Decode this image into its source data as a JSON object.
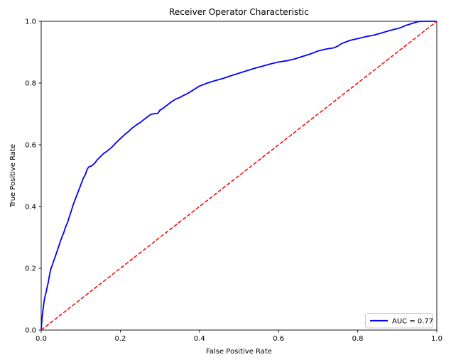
{
  "chart_data": {
    "type": "line",
    "title": "Receiver Operator Characteristic",
    "xlabel": "False Positive Rate",
    "ylabel": "True Positive Rate",
    "xlim": [
      0.0,
      1.0
    ],
    "ylim": [
      0.0,
      1.0
    ],
    "x_ticks": [
      "0.0",
      "0.2",
      "0.4",
      "0.6",
      "0.8",
      "1.0"
    ],
    "y_ticks": [
      "0.0",
      "0.2",
      "0.4",
      "0.6",
      "0.8",
      "1.0"
    ],
    "grid": false,
    "legend": {
      "position": "lower right",
      "label": "AUC = 0.77"
    },
    "auc": 0.77,
    "colors": {
      "roc_curve": "#0000ff",
      "chance_line": "#ff0000",
      "frame": "#000000",
      "legend_border": "#cccccc",
      "background": "#ffffff"
    },
    "series": [
      {
        "name": "AUC = 0.77",
        "color": "#0000ff",
        "style": "solid",
        "width": 1.8,
        "points": [
          [
            0.0,
            0.0
          ],
          [
            0.001,
            0.02
          ],
          [
            0.003,
            0.05
          ],
          [
            0.005,
            0.07
          ],
          [
            0.007,
            0.09
          ],
          [
            0.009,
            0.105
          ],
          [
            0.011,
            0.115
          ],
          [
            0.013,
            0.125
          ],
          [
            0.015,
            0.14
          ],
          [
            0.018,
            0.155
          ],
          [
            0.02,
            0.17
          ],
          [
            0.022,
            0.185
          ],
          [
            0.025,
            0.2
          ],
          [
            0.028,
            0.21
          ],
          [
            0.032,
            0.225
          ],
          [
            0.036,
            0.24
          ],
          [
            0.04,
            0.255
          ],
          [
            0.044,
            0.27
          ],
          [
            0.048,
            0.285
          ],
          [
            0.052,
            0.3
          ],
          [
            0.057,
            0.315
          ],
          [
            0.062,
            0.335
          ],
          [
            0.067,
            0.35
          ],
          [
            0.072,
            0.37
          ],
          [
            0.077,
            0.39
          ],
          [
            0.082,
            0.41
          ],
          [
            0.088,
            0.43
          ],
          [
            0.094,
            0.45
          ],
          [
            0.1,
            0.47
          ],
          [
            0.106,
            0.49
          ],
          [
            0.112,
            0.505
          ],
          [
            0.116,
            0.52
          ],
          [
            0.12,
            0.528
          ],
          [
            0.128,
            0.532
          ],
          [
            0.135,
            0.54
          ],
          [
            0.142,
            0.552
          ],
          [
            0.15,
            0.562
          ],
          [
            0.158,
            0.572
          ],
          [
            0.165,
            0.578
          ],
          [
            0.172,
            0.585
          ],
          [
            0.18,
            0.594
          ],
          [
            0.19,
            0.608
          ],
          [
            0.2,
            0.62
          ],
          [
            0.21,
            0.632
          ],
          [
            0.22,
            0.642
          ],
          [
            0.23,
            0.654
          ],
          [
            0.24,
            0.664
          ],
          [
            0.25,
            0.672
          ],
          [
            0.26,
            0.682
          ],
          [
            0.27,
            0.692
          ],
          [
            0.278,
            0.699
          ],
          [
            0.295,
            0.702
          ],
          [
            0.3,
            0.712
          ],
          [
            0.31,
            0.72
          ],
          [
            0.32,
            0.73
          ],
          [
            0.33,
            0.74
          ],
          [
            0.34,
            0.748
          ],
          [
            0.35,
            0.753
          ],
          [
            0.36,
            0.76
          ],
          [
            0.37,
            0.766
          ],
          [
            0.38,
            0.774
          ],
          [
            0.39,
            0.782
          ],
          [
            0.4,
            0.79
          ],
          [
            0.42,
            0.8
          ],
          [
            0.44,
            0.808
          ],
          [
            0.46,
            0.815
          ],
          [
            0.48,
            0.824
          ],
          [
            0.5,
            0.832
          ],
          [
            0.52,
            0.84
          ],
          [
            0.54,
            0.848
          ],
          [
            0.56,
            0.855
          ],
          [
            0.58,
            0.862
          ],
          [
            0.6,
            0.868
          ],
          [
            0.62,
            0.872
          ],
          [
            0.64,
            0.878
          ],
          [
            0.66,
            0.886
          ],
          [
            0.68,
            0.894
          ],
          [
            0.7,
            0.904
          ],
          [
            0.72,
            0.91
          ],
          [
            0.74,
            0.914
          ],
          [
            0.75,
            0.92
          ],
          [
            0.76,
            0.928
          ],
          [
            0.78,
            0.938
          ],
          [
            0.8,
            0.944
          ],
          [
            0.82,
            0.95
          ],
          [
            0.84,
            0.955
          ],
          [
            0.86,
            0.962
          ],
          [
            0.88,
            0.97
          ],
          [
            0.9,
            0.976
          ],
          [
            0.91,
            0.98
          ],
          [
            0.92,
            0.986
          ],
          [
            0.93,
            0.99
          ],
          [
            0.94,
            0.994
          ],
          [
            0.95,
            0.998
          ],
          [
            0.96,
            1.0
          ],
          [
            1.0,
            1.0
          ]
        ]
      },
      {
        "name": "chance",
        "color": "#ff0000",
        "style": "dashed",
        "width": 1.5,
        "points": [
          [
            0.0,
            0.0
          ],
          [
            1.0,
            1.0
          ]
        ]
      }
    ]
  }
}
